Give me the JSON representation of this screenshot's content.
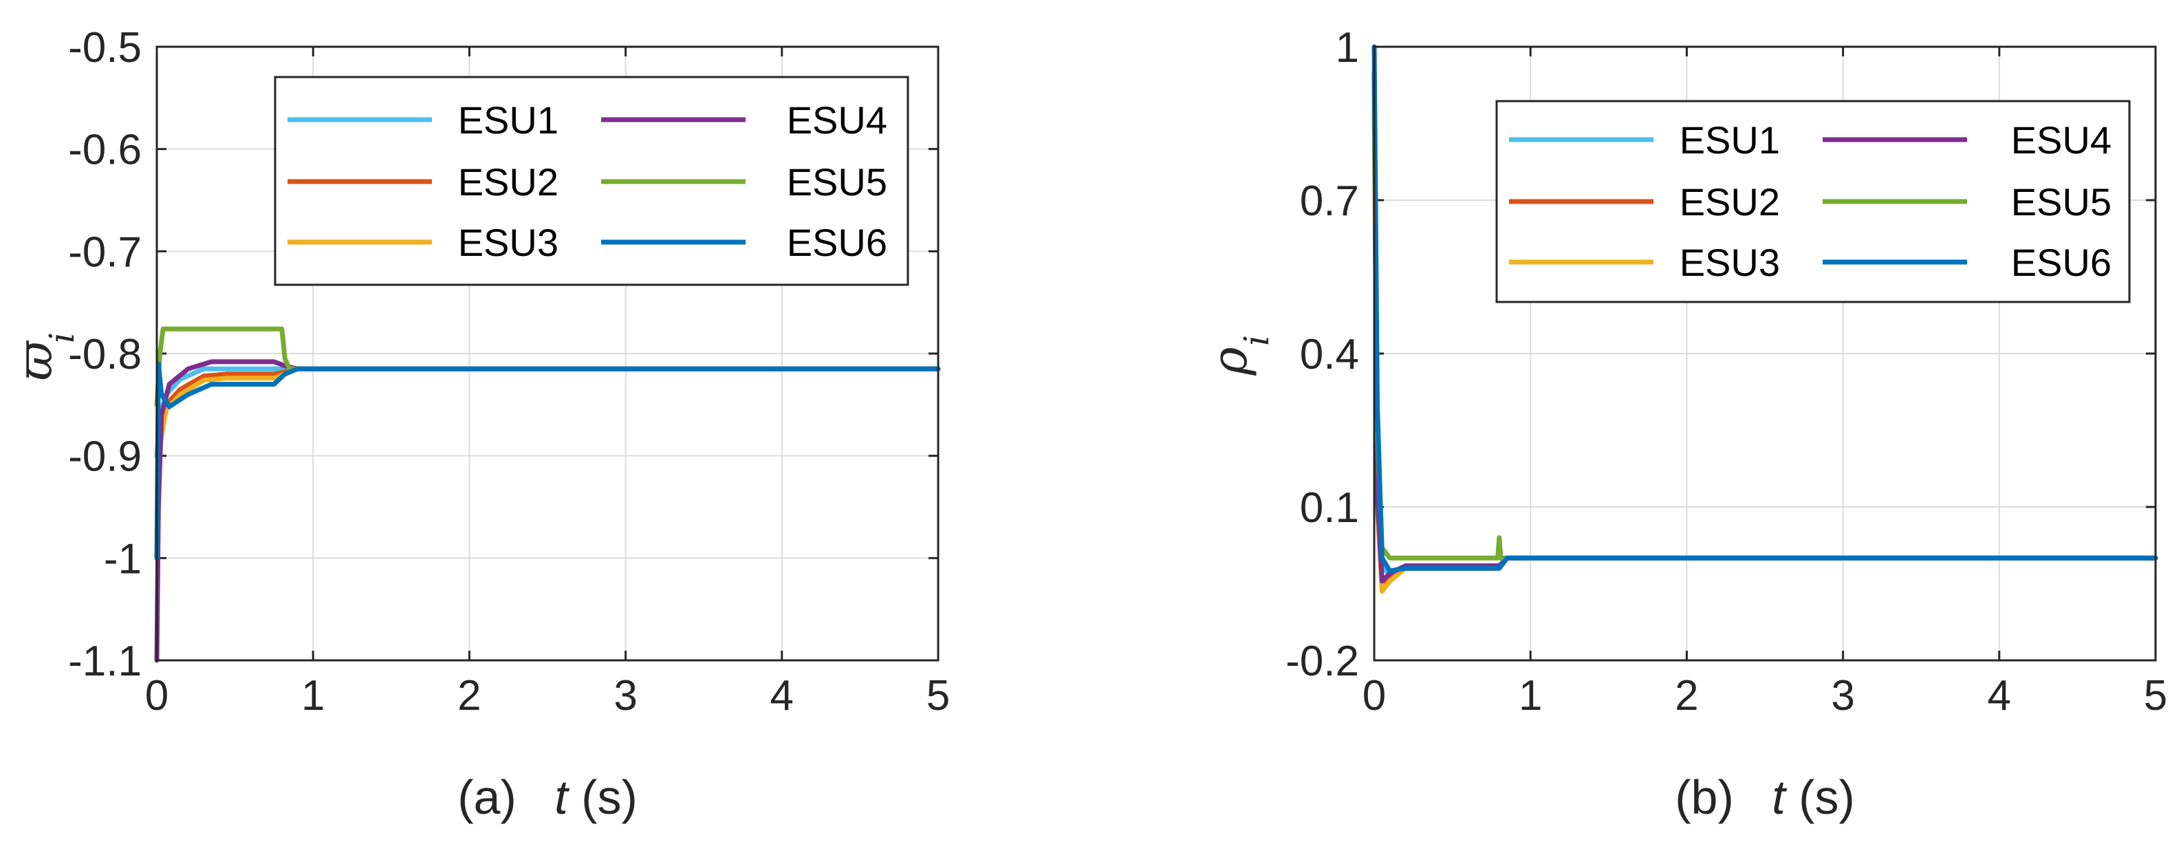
{
  "chart_data": [
    {
      "type": "line",
      "caption_prefix": "(a)",
      "xlabel_var": "t",
      "xlabel_unit": "(s)",
      "ylabel_symbol": "ϖ",
      "ylabel_sub": "i",
      "xlim": [
        0,
        5
      ],
      "ylim": [
        -1.1,
        -0.5
      ],
      "xticks": [
        "0",
        "1",
        "2",
        "3",
        "4",
        "5"
      ],
      "yticks": [
        "-0.5",
        "-0.6",
        "-0.7",
        "-0.8",
        "-0.9",
        "-1",
        "-1.1"
      ],
      "grid": true,
      "legend_position": "top-right",
      "series": [
        {
          "name": "ESU1",
          "color": "#4DBEEE",
          "x": [
            0,
            0.02,
            0.06,
            0.15,
            0.3,
            0.45,
            0.6,
            0.75,
            0.82,
            0.9,
            5
          ],
          "y": [
            -0.9,
            -0.86,
            -0.84,
            -0.825,
            -0.815,
            -0.815,
            -0.815,
            -0.815,
            -0.815,
            -0.815,
            -0.815
          ]
        },
        {
          "name": "ESU2",
          "color": "#D95319",
          "x": [
            0,
            0.02,
            0.06,
            0.15,
            0.3,
            0.45,
            0.6,
            0.75,
            0.82,
            0.9,
            5
          ],
          "y": [
            -1.0,
            -0.88,
            -0.85,
            -0.835,
            -0.822,
            -0.82,
            -0.82,
            -0.82,
            -0.818,
            -0.815,
            -0.815
          ]
        },
        {
          "name": "ESU3",
          "color": "#EDB120",
          "x": [
            0,
            0.02,
            0.06,
            0.15,
            0.3,
            0.45,
            0.6,
            0.75,
            0.82,
            0.9,
            5
          ],
          "y": [
            -1.0,
            -0.89,
            -0.855,
            -0.84,
            -0.826,
            -0.824,
            -0.824,
            -0.824,
            -0.82,
            -0.815,
            -0.815
          ]
        },
        {
          "name": "ESU4",
          "color": "#7E2F8E",
          "x": [
            0,
            0.01,
            0.03,
            0.08,
            0.2,
            0.35,
            0.5,
            0.75,
            0.82,
            0.9,
            5
          ],
          "y": [
            -1.1,
            -0.95,
            -0.86,
            -0.83,
            -0.815,
            -0.808,
            -0.808,
            -0.808,
            -0.812,
            -0.815,
            -0.815
          ]
        },
        {
          "name": "ESU5",
          "color": "#77AC30",
          "x": [
            0,
            0.02,
            0.04,
            0.78,
            0.8,
            0.82,
            0.85,
            5
          ],
          "y": [
            -0.85,
            -0.8,
            -0.776,
            -0.776,
            -0.776,
            -0.805,
            -0.815,
            -0.815
          ]
        },
        {
          "name": "ESU6",
          "color": "#0072BD",
          "x": [
            0,
            0.01,
            0.03,
            0.08,
            0.2,
            0.35,
            0.5,
            0.75,
            0.82,
            0.9,
            5
          ],
          "y": [
            -1.0,
            -0.81,
            -0.84,
            -0.852,
            -0.84,
            -0.83,
            -0.83,
            -0.83,
            -0.82,
            -0.815,
            -0.815
          ]
        }
      ]
    },
    {
      "type": "line",
      "caption_prefix": "(b)",
      "xlabel_var": "t",
      "xlabel_unit": "(s)",
      "ylabel_symbol": "ρ",
      "ylabel_sub": "i",
      "xlim": [
        0,
        5
      ],
      "ylim": [
        -0.2,
        1.0
      ],
      "xticks": [
        "0",
        "1",
        "2",
        "3",
        "4",
        "5"
      ],
      "yticks": [
        "1",
        "0.7",
        "0.4",
        "0.1",
        "-0.2"
      ],
      "ytick_values": [
        1.0,
        0.7,
        0.4,
        0.1,
        -0.2
      ],
      "grid": true,
      "legend_position": "top-right",
      "series": [
        {
          "name": "ESU1",
          "color": "#4DBEEE",
          "x": [
            0,
            0.02,
            0.05,
            0.1,
            0.2,
            0.5,
            0.8,
            0.85,
            5
          ],
          "y": [
            0.95,
            0.2,
            -0.02,
            -0.03,
            -0.02,
            -0.02,
            -0.02,
            0.0,
            0.0
          ]
        },
        {
          "name": "ESU2",
          "color": "#D95319",
          "x": [
            0,
            0.02,
            0.05,
            0.1,
            0.2,
            0.5,
            0.8,
            0.85,
            5
          ],
          "y": [
            0.9,
            0.15,
            -0.05,
            -0.04,
            -0.02,
            -0.02,
            -0.02,
            0.0,
            0.0
          ]
        },
        {
          "name": "ESU3",
          "color": "#EDB120",
          "x": [
            0,
            0.02,
            0.05,
            0.1,
            0.2,
            0.5,
            0.8,
            0.85,
            5
          ],
          "y": [
            0.9,
            0.1,
            -0.065,
            -0.045,
            -0.02,
            -0.02,
            -0.02,
            0.0,
            0.0
          ]
        },
        {
          "name": "ESU4",
          "color": "#7E2F8E",
          "x": [
            0,
            0.02,
            0.05,
            0.1,
            0.2,
            0.5,
            0.8,
            0.85,
            5
          ],
          "y": [
            0.95,
            0.12,
            -0.045,
            -0.03,
            -0.015,
            -0.015,
            -0.015,
            0.0,
            0.0
          ]
        },
        {
          "name": "ESU5",
          "color": "#77AC30",
          "x": [
            0,
            0.02,
            0.05,
            0.1,
            0.2,
            0.5,
            0.79,
            0.8,
            0.81,
            0.83,
            5
          ],
          "y": [
            0.9,
            0.25,
            0.02,
            0.0,
            0.0,
            0.0,
            0.0,
            0.04,
            0.0,
            0.0,
            0.0
          ]
        },
        {
          "name": "ESU6",
          "color": "#0072BD",
          "x": [
            0,
            0.02,
            0.05,
            0.1,
            0.2,
            0.5,
            0.8,
            0.85,
            5
          ],
          "y": [
            1.0,
            0.3,
            0.0,
            -0.025,
            -0.02,
            -0.02,
            -0.02,
            0.0,
            0.0
          ]
        }
      ]
    }
  ]
}
